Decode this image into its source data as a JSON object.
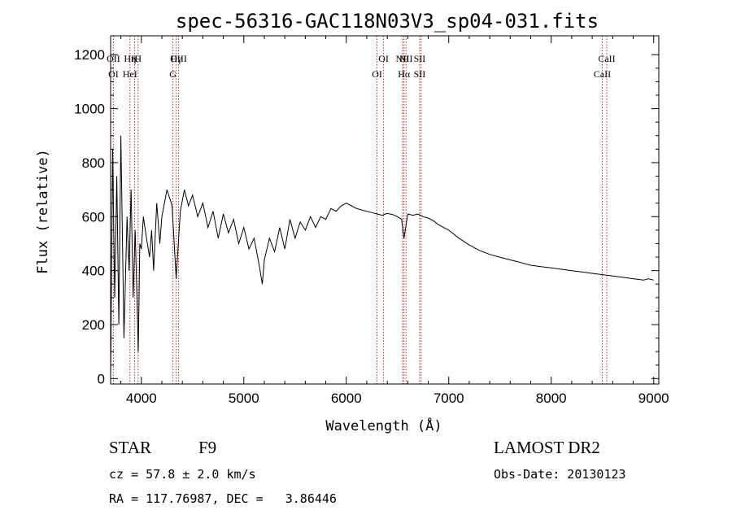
{
  "chart_data": {
    "type": "line",
    "title": "spec-56316-GAC118N03V3_sp04-031.fits",
    "xlabel": "Wavelength (Å)",
    "ylabel": "Flux (relative)",
    "xlim": [
      3700,
      9050
    ],
    "ylim": [
      -20,
      1270
    ],
    "x_ticks": [
      4000,
      5000,
      6000,
      7000,
      8000,
      9000
    ],
    "y_ticks": [
      0,
      200,
      400,
      600,
      800,
      1000,
      1200
    ],
    "grid": false,
    "legend": "none",
    "colors": {
      "spectrum": "#000000",
      "lines": "#b03030"
    },
    "series": [
      {
        "x": [
          3700,
          3720,
          3740,
          3760,
          3780,
          3800,
          3830,
          3860,
          3880,
          3900,
          3920,
          3940,
          3960,
          3970,
          3985,
          4000,
          4020,
          4050,
          4080,
          4100,
          4120,
          4150,
          4180,
          4200,
          4250,
          4300,
          4340,
          4380,
          4420,
          4460,
          4500,
          4550,
          4600,
          4650,
          4700,
          4750,
          4800,
          4850,
          4900,
          4950,
          5000,
          5050,
          5100,
          5150,
          5180,
          5200,
          5250,
          5300,
          5350,
          5400,
          5450,
          5500,
          5550,
          5600,
          5650,
          5700,
          5750,
          5800,
          5850,
          5900,
          5950,
          6000,
          6050,
          6100,
          6150,
          6200,
          6250,
          6300,
          6350,
          6400,
          6450,
          6500,
          6540,
          6563,
          6580,
          6600,
          6650,
          6700,
          6750,
          6800,
          6850,
          6900,
          6950,
          7000,
          7100,
          7200,
          7300,
          7400,
          7500,
          7600,
          7700,
          7800,
          7900,
          8000,
          8100,
          8200,
          8300,
          8400,
          8500,
          8600,
          8700,
          8800,
          8900,
          8950,
          9000
        ],
        "y": [
          0,
          850,
          300,
          750,
          200,
          900,
          150,
          600,
          400,
          700,
          300,
          550,
          250,
          100,
          500,
          480,
          600,
          520,
          450,
          550,
          400,
          650,
          500,
          600,
          700,
          640,
          370,
          620,
          700,
          640,
          680,
          600,
          650,
          560,
          620,
          520,
          610,
          540,
          590,
          500,
          560,
          480,
          520,
          420,
          350,
          440,
          520,
          470,
          560,
          480,
          590,
          520,
          580,
          550,
          600,
          560,
          600,
          590,
          630,
          620,
          640,
          650,
          640,
          630,
          625,
          620,
          615,
          610,
          605,
          612,
          608,
          600,
          590,
          520,
          560,
          610,
          605,
          610,
          600,
          595,
          585,
          570,
          560,
          550,
          520,
          495,
          475,
          460,
          450,
          440,
          430,
          420,
          415,
          410,
          405,
          400,
          395,
          390,
          385,
          380,
          375,
          370,
          365,
          370,
          365
        ]
      }
    ],
    "lines": [
      {
        "w": 3727,
        "top": "OII",
        "bottom": "OI"
      },
      {
        "w": 3889,
        "top": "Hη",
        "bottom": "HeI"
      },
      {
        "w": 3934,
        "top": "K",
        "bottom": ""
      },
      {
        "w": 3968,
        "top": "H",
        "bottom": ""
      },
      {
        "w": 4308,
        "top": "",
        "bottom": "G"
      },
      {
        "w": 4340,
        "top": "Hγ",
        "bottom": ""
      },
      {
        "w": 4363,
        "top": "OIII",
        "bottom": ""
      },
      {
        "w": 6300,
        "top": "",
        "bottom": "OI"
      },
      {
        "w": 6364,
        "top": "OI",
        "bottom": ""
      },
      {
        "w": 6548,
        "top": "NII",
        "bottom": ""
      },
      {
        "w": 6563,
        "top": "",
        "bottom": "Hα"
      },
      {
        "w": 6583,
        "top": "NII",
        "bottom": ""
      },
      {
        "w": 6716,
        "top": "SII",
        "bottom": "SII"
      },
      {
        "w": 6731,
        "top": "",
        "bottom": ""
      },
      {
        "w": 8498,
        "top": "",
        "bottom": "CaII"
      },
      {
        "w": 8542,
        "top": "CaII",
        "bottom": ""
      }
    ]
  },
  "info": {
    "class": "STAR",
    "subclass": "F9",
    "survey": "LAMOST DR2",
    "cz": "cz = 57.8 ± 2.0 km/s",
    "obs_date": "Obs-Date: 20130123",
    "radec": "RA = 117.76987, DEC =   3.86446"
  }
}
